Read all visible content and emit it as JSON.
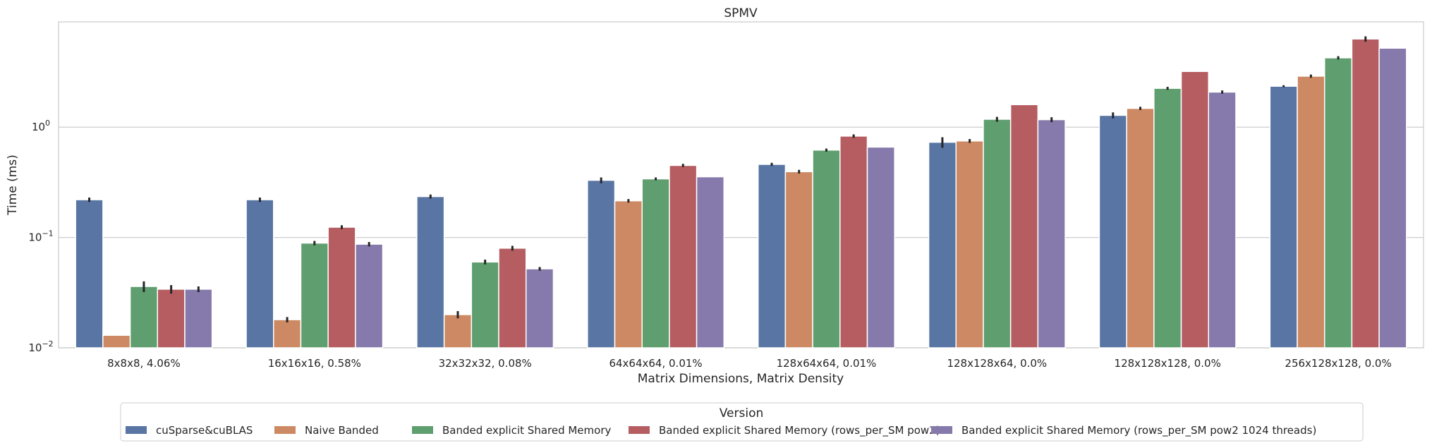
{
  "chart_data": {
    "type": "bar",
    "title": "SPMV",
    "xlabel": "Matrix Dimensions, Matrix Density",
    "ylabel": "Time (ms)",
    "yscale": "log",
    "ylim": [
      0.01,
      9.0
    ],
    "yticks": [
      {
        "value": 0.01,
        "base": "10",
        "exp": "−2"
      },
      {
        "value": 0.1,
        "base": "10",
        "exp": "−1"
      },
      {
        "value": 1,
        "base": "10",
        "exp": "0"
      }
    ],
    "grid": "horizontal",
    "categories": [
      "8x8x8, 4.06%",
      "16x16x16, 0.58%",
      "32x32x32, 0.08%",
      "64x64x64, 0.01%",
      "128x64x64, 0.01%",
      "128x128x64, 0.0%",
      "128x128x128, 0.0%",
      "256x128x128, 0.0%"
    ],
    "legend": {
      "title": "Version",
      "placement": "bottom-center"
    },
    "series": [
      {
        "name": "cuSparse&cuBLAS",
        "color": "#5875a4",
        "values": [
          0.22,
          0.22,
          0.235,
          0.33,
          0.46,
          0.73,
          1.28,
          2.35
        ],
        "err": [
          0.01,
          0.01,
          0.01,
          0.02,
          0.015,
          0.08,
          0.08,
          0.05
        ]
      },
      {
        "name": "Naive Banded",
        "color": "#cc8963",
        "values": [
          0.013,
          0.018,
          0.02,
          0.215,
          0.395,
          0.75,
          1.48,
          2.9
        ],
        "err": [
          0.0,
          0.001,
          0.0015,
          0.008,
          0.015,
          0.03,
          0.05,
          0.1
        ]
      },
      {
        "name": "Banded explicit Shared Memory",
        "color": "#5f9e6e",
        "values": [
          0.036,
          0.089,
          0.06,
          0.34,
          0.62,
          1.18,
          2.25,
          4.25
        ],
        "err": [
          0.004,
          0.004,
          0.003,
          0.01,
          0.02,
          0.06,
          0.07,
          0.15
        ]
      },
      {
        "name": "Banded explicit Shared Memory (rows_per_SM pow2)",
        "color": "#b55d60",
        "values": [
          0.034,
          0.124,
          0.08,
          0.45,
          0.83,
          1.6,
          3.2,
          6.3
        ],
        "err": [
          0.003,
          0.005,
          0.004,
          0.015,
          0.03,
          0.0,
          0.0,
          0.35
        ]
      },
      {
        "name": "Banded explicit Shared Memory (rows_per_SM pow2 1024 threads)",
        "color": "#857aab",
        "values": [
          0.034,
          0.087,
          0.052,
          0.355,
          0.66,
          1.17,
          2.08,
          5.2
        ],
        "err": [
          0.002,
          0.004,
          0.002,
          0.0,
          0.0,
          0.06,
          0.07,
          0.0
        ]
      }
    ]
  }
}
